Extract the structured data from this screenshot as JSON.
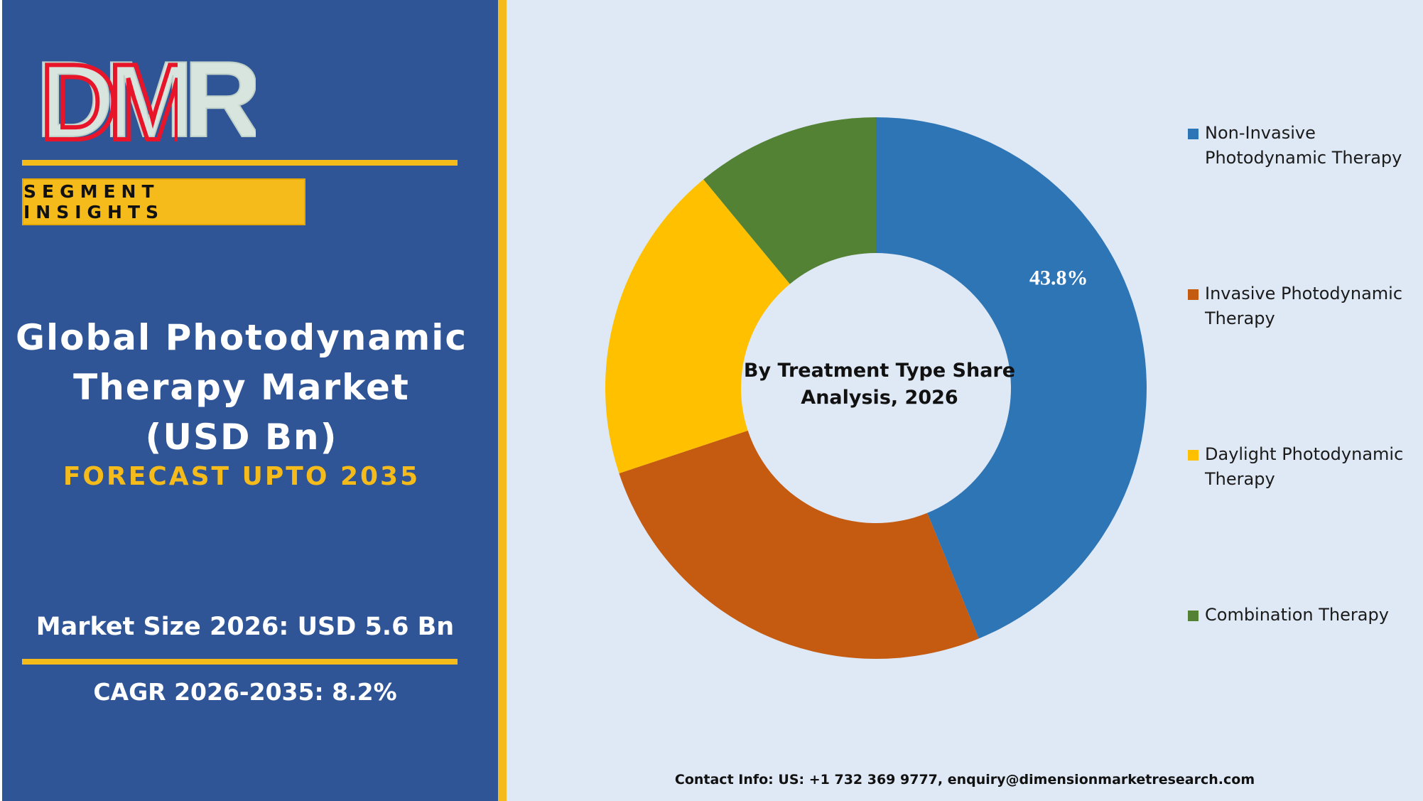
{
  "brand": {
    "logo_text": "DMR",
    "segment_badge": "SEGMENT INSIGHTS"
  },
  "left_panel": {
    "title": "Global Photodynamic Therapy Market (USD Bn)",
    "forecast": "FORECAST UPTO 2035",
    "market_size": "Market Size 2026: USD 5.6 Bn",
    "cagr": "CAGR 2026-2035: 8.2%"
  },
  "contact": "Contact Info: US: +1 732 369 9777, enquiry@dimensionmarketresearch.com",
  "colors": {
    "left_panel_bg": "#2f5597",
    "accent_gold": "#f4bb1b",
    "right_panel_bg": "#dfe9f5"
  },
  "chart_data": {
    "type": "donut",
    "title": "By Treatment Type Share Analysis, 2026",
    "series": [
      {
        "name": "Non-Invasive Photodynamic Therapy",
        "value": 43.8,
        "color": "#2e75b6",
        "data_label": "43.8%"
      },
      {
        "name": "Invasive Photodynamic Therapy",
        "value": 26.1,
        "color": "#c55a11",
        "data_label": ""
      },
      {
        "name": "Daylight Photodynamic Therapy",
        "value": 19.1,
        "color": "#ffc000",
        "data_label": ""
      },
      {
        "name": "Combination Therapy",
        "value": 11.0,
        "color": "#548235",
        "data_label": ""
      }
    ],
    "legend_position": "right"
  }
}
